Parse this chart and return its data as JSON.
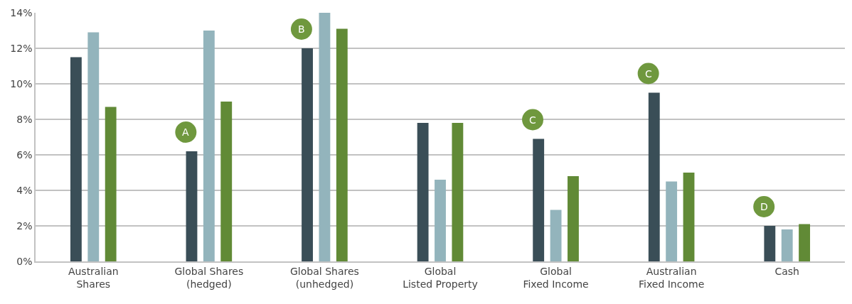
{
  "chart_data": {
    "type": "bar",
    "categories": [
      "Australian\nShares",
      "Global Shares\n(hedged)",
      "Global Shares\n(unhedged)",
      "Global\nListed Property",
      "Global\nFixed Income",
      "Australian\nFixed Income",
      "Cash"
    ],
    "series": [
      {
        "color": "#3a4e57",
        "values": [
          11.5,
          6.2,
          12.0,
          7.8,
          6.9,
          9.5,
          2.0
        ]
      },
      {
        "color": "#93b4bc",
        "values": [
          12.9,
          13.0,
          14.0,
          4.6,
          2.9,
          4.5,
          1.8
        ]
      },
      {
        "color": "#618a36",
        "values": [
          8.7,
          9.0,
          13.1,
          7.8,
          4.8,
          5.0,
          2.1
        ]
      }
    ],
    "ylim": [
      0,
      14
    ],
    "yticks": [
      {
        "value": 0,
        "label": "0%"
      },
      {
        "value": 2,
        "label": "2%"
      },
      {
        "value": 4,
        "label": "4%"
      },
      {
        "value": 6,
        "label": "6%"
      },
      {
        "value": 8,
        "label": "8%"
      },
      {
        "value": 10,
        "label": "10%"
      },
      {
        "value": 12,
        "label": "12%"
      },
      {
        "value": 14,
        "label": "14%"
      }
    ],
    "grid": "y",
    "annotations": [
      "A",
      "B",
      "C",
      "C",
      "D"
    ]
  }
}
